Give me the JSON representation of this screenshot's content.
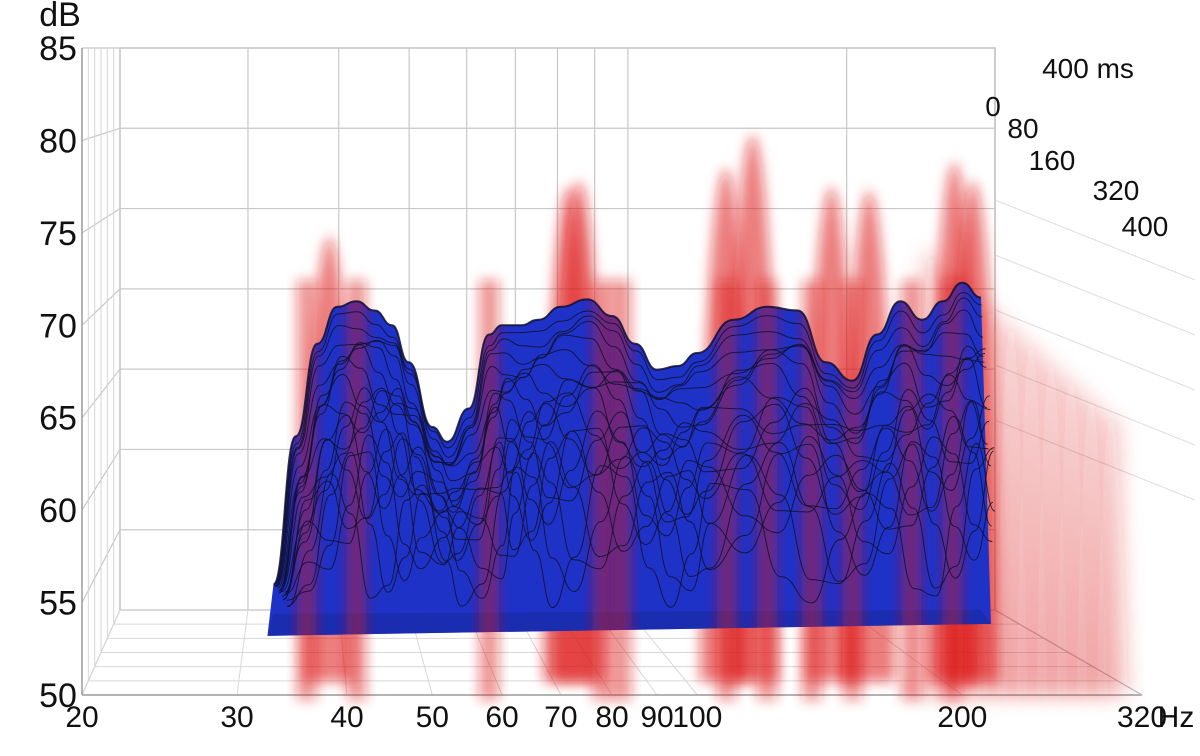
{
  "chart_data": {
    "type": "waterfall",
    "x_axis": {
      "unit": "Hz",
      "scale": "log",
      "range": [
        20,
        320
      ],
      "ticks": [
        "20",
        "30",
        "40",
        "50",
        "60",
        "70",
        "80",
        "90",
        "100",
        "200",
        "320"
      ]
    },
    "y_axis": {
      "unit": "dB",
      "range": [
        50,
        85
      ],
      "ticks": [
        "50",
        "55",
        "60",
        "65",
        "70",
        "75",
        "80",
        "85"
      ]
    },
    "time_axis": {
      "unit_label": "400 ms",
      "range": [
        0,
        400
      ],
      "ticks": [
        "0",
        "80",
        "160",
        "320",
        "400"
      ]
    },
    "grid": true,
    "colors": {
      "decay": "#1e32c8",
      "resonance": "#dc1414",
      "slice_line": "#101030",
      "grid": "#c8c8c8"
    },
    "front_response": {
      "freq": [
        33,
        35,
        37,
        39,
        41,
        43,
        45,
        47,
        50,
        52,
        55,
        58,
        60,
        63,
        66,
        70,
        75,
        80,
        85,
        90,
        95,
        100,
        110,
        120,
        130,
        140,
        150,
        160,
        170,
        180,
        190,
        200,
        210
      ],
      "db": [
        56,
        64,
        69,
        71,
        71.3,
        70.8,
        70,
        68,
        64.5,
        63.7,
        65.5,
        69.5,
        70,
        70,
        70.3,
        71,
        71.4,
        70.5,
        69,
        67.6,
        67.8,
        68.5,
        70.3,
        71,
        70.8,
        68,
        67,
        69.5,
        71.3,
        70.3,
        71.3,
        72.3,
        71.5
      ]
    },
    "decay_floor_db": 54.5,
    "slice_count": 22,
    "resonance_peaks": [
      {
        "freq": 39,
        "db": 74.8
      },
      {
        "freq": 73,
        "db": 77.5
      },
      {
        "freq": 75,
        "db": 77.8
      },
      {
        "freq": 110,
        "db": 78.5
      },
      {
        "freq": 118,
        "db": 80.3
      },
      {
        "freq": 145,
        "db": 77.5
      },
      {
        "freq": 160,
        "db": 77.3
      },
      {
        "freq": 200,
        "db": 78.8
      },
      {
        "freq": 210,
        "db": 77.8
      }
    ]
  }
}
